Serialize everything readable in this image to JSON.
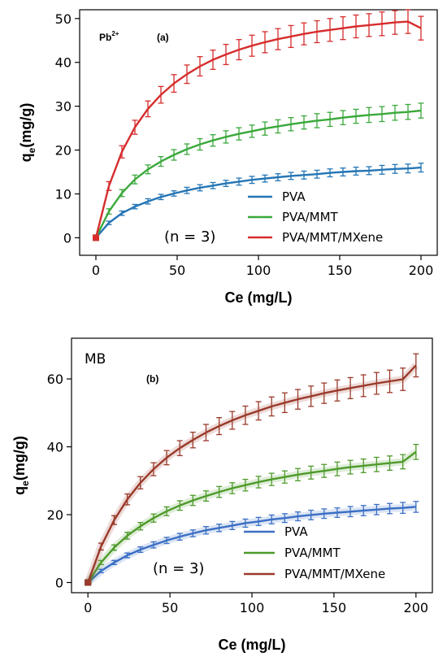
{
  "chart_data": [
    {
      "type": "line",
      "species": "Pb",
      "species_sup": "2+",
      "panel_label": "(a)",
      "xlabel": "Ce (mg/L)",
      "ylabel_main": "q",
      "ylabel_sub": "e",
      "ylabel_rest": "(mg/g)",
      "xlim": [
        -10,
        210
      ],
      "ylim": [
        -4,
        52
      ],
      "xticks": [
        0,
        50,
        100,
        150,
        200
      ],
      "yticks": [
        0,
        10,
        20,
        30,
        40,
        50
      ],
      "annotation": "(n = 3)",
      "legend_position": "lower-right",
      "x": [
        0,
        8,
        16,
        24,
        32,
        40,
        48,
        56,
        64,
        72,
        80,
        88,
        96,
        104,
        112,
        120,
        128,
        136,
        144,
        152,
        160,
        168,
        176,
        184,
        192,
        200
      ],
      "series": [
        {
          "name": "PVA",
          "color": "#2475b5",
          "values": [
            0,
            3.4,
            5.6,
            7.1,
            8.3,
            9.3,
            10.1,
            10.8,
            11.4,
            11.9,
            12.4,
            12.8,
            13.2,
            13.5,
            13.8,
            14.1,
            14.3,
            14.5,
            14.8,
            15.0,
            15.2,
            15.3,
            15.5,
            15.7,
            15.8,
            16.0
          ],
          "errors": [
            0,
            0.4,
            0.5,
            0.5,
            0.6,
            0.6,
            0.6,
            0.7,
            0.7,
            0.7,
            0.7,
            0.8,
            0.8,
            0.8,
            0.8,
            0.8,
            0.9,
            0.9,
            0.9,
            0.9,
            0.9,
            0.9,
            1.0,
            1.0,
            1.0,
            1.0
          ]
        },
        {
          "name": "PVA/MMT",
          "color": "#3aa83a",
          "values": [
            0,
            6.0,
            10.2,
            13.3,
            15.6,
            17.4,
            18.9,
            20.2,
            21.3,
            22.2,
            23.0,
            23.7,
            24.3,
            24.9,
            25.4,
            25.9,
            26.3,
            26.7,
            27.0,
            27.4,
            27.7,
            28.0,
            28.2,
            28.5,
            28.7,
            29.0
          ],
          "errors": [
            0,
            0.6,
            0.8,
            1.0,
            1.0,
            1.1,
            1.2,
            1.2,
            1.3,
            1.3,
            1.4,
            1.4,
            1.4,
            1.5,
            1.5,
            1.5,
            1.5,
            1.6,
            1.6,
            1.6,
            1.6,
            1.7,
            1.7,
            1.7,
            1.7,
            1.7
          ]
        },
        {
          "name": "PVA/MMT/MXene",
          "color": "#d62d2d",
          "values": [
            0,
            11.8,
            19.6,
            25.2,
            29.4,
            32.6,
            35.2,
            37.3,
            39.1,
            40.6,
            41.8,
            42.9,
            43.8,
            44.6,
            45.3,
            45.9,
            46.5,
            47.0,
            47.4,
            47.8,
            48.2,
            48.5,
            48.8,
            49.1,
            49.3,
            47.8
          ],
          "errors": [
            0,
            1.0,
            1.4,
            1.6,
            1.8,
            1.9,
            2.0,
            2.1,
            2.2,
            2.2,
            2.3,
            2.3,
            2.4,
            2.4,
            2.4,
            2.5,
            2.5,
            2.5,
            2.6,
            2.6,
            2.6,
            2.6,
            2.7,
            2.7,
            2.7,
            2.7
          ]
        }
      ]
    },
    {
      "type": "line",
      "species": "MB",
      "species_sup": "",
      "panel_label": "(b)",
      "xlabel": "Ce (mg/L)",
      "ylabel_main": "q",
      "ylabel_sub": "e",
      "ylabel_rest": "(mg/g)",
      "xlim": [
        -10,
        210
      ],
      "ylim": [
        -3,
        72
      ],
      "xticks": [
        0,
        50,
        100,
        150,
        200
      ],
      "yticks": [
        0,
        20,
        40,
        60
      ],
      "annotation": "(n = 3)",
      "legend_position": "lower-right",
      "x": [
        0,
        8,
        16,
        24,
        32,
        40,
        48,
        56,
        64,
        72,
        80,
        88,
        96,
        104,
        112,
        120,
        128,
        136,
        144,
        152,
        160,
        168,
        176,
        184,
        192,
        200
      ],
      "series": [
        {
          "name": "PVA",
          "color": "#3b6fc4",
          "values": [
            0,
            3.4,
            5.9,
            8.0,
            9.7,
            11.1,
            12.4,
            13.5,
            14.5,
            15.4,
            16.1,
            16.8,
            17.5,
            18.0,
            18.6,
            19.0,
            19.5,
            19.9,
            20.3,
            20.6,
            20.9,
            21.2,
            21.5,
            21.8,
            22.0,
            22.3
          ],
          "errors": [
            0,
            0.5,
            0.6,
            0.7,
            0.8,
            0.9,
            0.9,
            1.0,
            1.0,
            1.1,
            1.1,
            1.2,
            1.2,
            1.2,
            1.3,
            1.3,
            1.3,
            1.4,
            1.4,
            1.4,
            1.5,
            1.5,
            1.5,
            1.5,
            1.6,
            1.6
          ]
        },
        {
          "name": "PVA/MMT",
          "color": "#4e9a2a",
          "values": [
            0,
            5.9,
            10.3,
            13.8,
            16.6,
            19.0,
            21.0,
            22.7,
            24.2,
            25.5,
            26.7,
            27.8,
            28.7,
            29.6,
            30.4,
            31.1,
            31.8,
            32.4,
            32.9,
            33.5,
            34.0,
            34.4,
            34.8,
            35.2,
            35.6,
            38.5
          ],
          "errors": [
            0,
            0.6,
            0.8,
            1.0,
            1.1,
            1.2,
            1.3,
            1.4,
            1.5,
            1.5,
            1.6,
            1.6,
            1.7,
            1.7,
            1.8,
            1.8,
            1.8,
            1.9,
            1.9,
            2.0,
            2.0,
            2.0,
            2.1,
            2.1,
            2.1,
            2.2
          ]
        },
        {
          "name": "PVA/MMT/MXene",
          "color": "#9a3a2a",
          "values": [
            0,
            10.6,
            18.4,
            24.5,
            29.4,
            33.4,
            36.8,
            39.6,
            42.0,
            44.2,
            46.1,
            47.8,
            49.3,
            50.6,
            51.9,
            53.0,
            54.0,
            54.9,
            55.8,
            56.6,
            57.3,
            58.0,
            58.7,
            59.3,
            59.9,
            64.0
          ],
          "errors": [
            0,
            1.0,
            1.3,
            1.6,
            1.8,
            1.9,
            2.1,
            2.2,
            2.3,
            2.4,
            2.5,
            2.6,
            2.7,
            2.7,
            2.8,
            2.9,
            2.9,
            3.0,
            3.0,
            3.1,
            3.1,
            3.2,
            3.2,
            3.3,
            3.3,
            3.4
          ]
        }
      ]
    }
  ]
}
